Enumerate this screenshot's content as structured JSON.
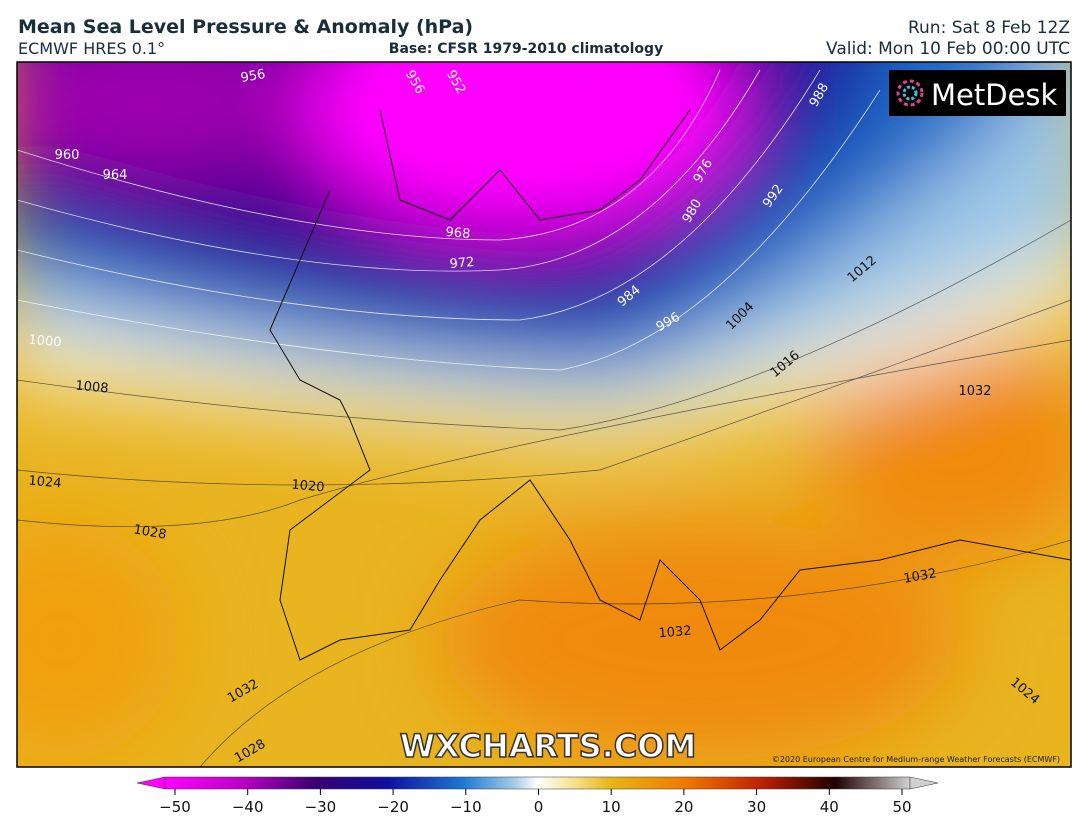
{
  "header": {
    "title": "Mean Sea Level Pressure & Anomaly (hPa)",
    "model": "ECMWF HRES 0.1°",
    "base": "Base: CFSR 1979-2010 climatology",
    "run": "Run: Sat 8 Feb 12Z",
    "valid": "Valid: Mon 10 Feb 00:00 UTC"
  },
  "map": {
    "logo": "MetDesk",
    "watermark": "WXCHARTS.COM",
    "copyright": "©2020 European Centre for Medium-range Weather Forecasts (ECMWF)",
    "contour_labels": [
      "956",
      "956",
      "952",
      "960",
      "964",
      "968",
      "972",
      "976",
      "980",
      "984",
      "988",
      "992",
      "996",
      "1000",
      "1004",
      "1008",
      "1012",
      "1016",
      "1020",
      "1024",
      "1028",
      "1032",
      "1032",
      "1032",
      "1032",
      "1028",
      "1024"
    ]
  },
  "colorbar": {
    "ticks": [
      "−50",
      "−40",
      "−30",
      "−20",
      "−10",
      "0",
      "10",
      "20",
      "30",
      "40",
      "50"
    ]
  }
}
